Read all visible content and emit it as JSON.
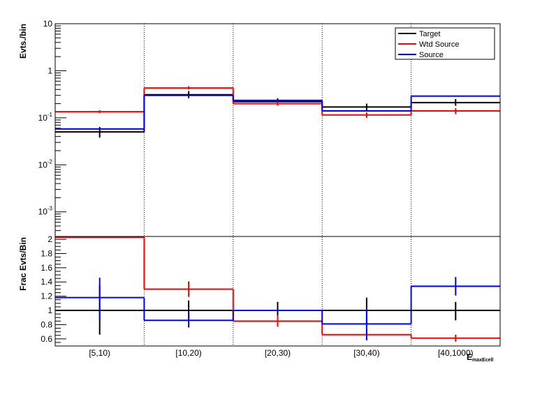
{
  "chart_data": [
    {
      "type": "line",
      "panel": "top",
      "ylabel": "Evts./bin",
      "yscale": "log",
      "ylim": [
        0.0003,
        10
      ],
      "y_tick_labels": [
        {
          "base": "10",
          "exp": "-3",
          "value": 0.001
        },
        {
          "base": "10",
          "exp": "-2",
          "value": 0.01
        },
        {
          "base": "10",
          "exp": "-1",
          "value": 0.1
        },
        {
          "base": "1",
          "exp": "",
          "value": 1
        },
        {
          "base": "10",
          "exp": "",
          "value": 10
        }
      ],
      "categories": [
        "[5,10)",
        "[10,20)",
        "[20,30)",
        "[30,40)",
        "[40,1000)"
      ],
      "legend_position": "top-right",
      "series": [
        {
          "name": "Target",
          "color": "#000000",
          "values": [
            0.05,
            0.31,
            0.22,
            0.17,
            0.21
          ],
          "err_low": [
            0.038,
            0.26,
            0.19,
            0.145,
            0.18
          ],
          "err_high": [
            0.064,
            0.37,
            0.26,
            0.2,
            0.25
          ]
        },
        {
          "name": "Wtd Source",
          "color": "#ff0000",
          "values": [
            0.135,
            0.43,
            0.2,
            0.115,
            0.14
          ],
          "err_low": [
            0.125,
            0.4,
            0.18,
            0.1,
            0.12
          ],
          "err_high": [
            0.145,
            0.47,
            0.22,
            0.13,
            0.16
          ]
        },
        {
          "name": "Source",
          "color": "#0000ff",
          "values": [
            0.058,
            0.3,
            0.235,
            0.14,
            0.29
          ],
          "err_low": null,
          "err_high": null
        }
      ]
    },
    {
      "type": "line",
      "panel": "bottom",
      "ylabel": "Frac Evts/Bin",
      "ylim": [
        0.5,
        2.04
      ],
      "y_ticks": [
        0.6,
        0.8,
        1.0,
        1.2,
        1.4,
        1.6,
        1.8,
        2.0
      ],
      "y_tick_labels": [
        "0.6",
        "0.8",
        "1",
        "1.2",
        "1.4",
        "1.6",
        "1.8",
        "2"
      ],
      "categories": [
        "[5,10)",
        "[10,20)",
        "[20,30)",
        "[30,40)",
        "[40,1000)"
      ],
      "xlabel": "E_maxEcell",
      "series": [
        {
          "name": "Target",
          "color": "#000000",
          "values": [
            1.0,
            1.0,
            1.0,
            1.0,
            1.0
          ],
          "err_low": [
            0.66,
            0.86,
            0.89,
            0.81,
            0.86
          ],
          "err_high": [
            1.36,
            1.14,
            1.12,
            1.18,
            1.12
          ]
        },
        {
          "name": "Wtd Source",
          "color": "#ff0000",
          "values": [
            2.03,
            1.3,
            0.85,
            0.66,
            0.61
          ],
          "err_low": [
            null,
            1.19,
            0.77,
            0.58,
            0.56
          ],
          "err_high": [
            null,
            1.41,
            0.93,
            0.73,
            0.66
          ]
        },
        {
          "name": "Source",
          "color": "#0000ff",
          "values": [
            1.18,
            0.86,
            1.0,
            0.81,
            1.34
          ],
          "err_low": [
            0.88,
            0.76,
            null,
            0.58,
            1.21
          ],
          "err_high": [
            1.46,
            0.98,
            null,
            1.02,
            1.47
          ]
        }
      ]
    }
  ]
}
